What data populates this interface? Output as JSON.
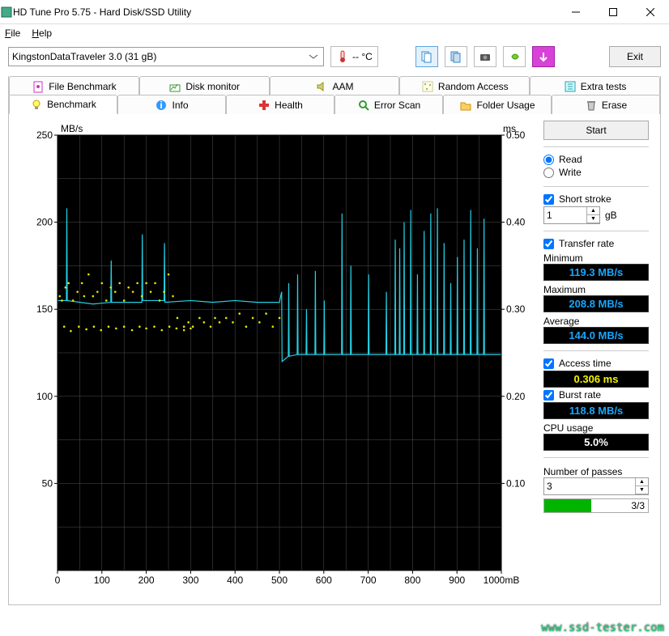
{
  "window": {
    "title": "HD Tune Pro 5.75 - Hard Disk/SSD Utility"
  },
  "menu": {
    "file": "File",
    "help": "Help"
  },
  "toolbar": {
    "drive": "KingstonDataTraveler 3.0 (31 gB)",
    "temp": "-- °C",
    "exit": "Exit"
  },
  "tabs_row1": [
    {
      "label": "File Benchmark",
      "icon": "file-bench"
    },
    {
      "label": "Disk monitor",
      "icon": "disk-mon"
    },
    {
      "label": "AAM",
      "icon": "speaker"
    },
    {
      "label": "Random Access",
      "icon": "random"
    },
    {
      "label": "Extra tests",
      "icon": "extra"
    }
  ],
  "tabs_row2": [
    {
      "label": "Benchmark",
      "icon": "bulb",
      "active": true
    },
    {
      "label": "Info",
      "icon": "info"
    },
    {
      "label": "Health",
      "icon": "plus"
    },
    {
      "label": "Error Scan",
      "icon": "lens"
    },
    {
      "label": "Folder Usage",
      "icon": "folder"
    },
    {
      "label": "Erase",
      "icon": "trash"
    }
  ],
  "side": {
    "start": "Start",
    "read": "Read",
    "write": "Write",
    "short_stroke": "Short stroke",
    "short_stroke_val": "1",
    "short_stroke_unit": "gB",
    "transfer_rate": "Transfer rate",
    "min_label": "Minimum",
    "min_val": "119.3 MB/s",
    "max_label": "Maximum",
    "max_val": "208.8 MB/s",
    "avg_label": "Average",
    "avg_val": "144.0 MB/s",
    "access_label": "Access time",
    "access_val": "0.306 ms",
    "burst_label": "Burst rate",
    "burst_val": "118.8 MB/s",
    "cpu_label": "CPU usage",
    "cpu_val": "5.0%",
    "passes_label": "Number of passes",
    "passes_val": "3",
    "progress": "3/3"
  },
  "chart": {
    "y_left_label": "MB/s",
    "y_right_label": "ms",
    "y_left_ticks": [
      50,
      100,
      150,
      200,
      250
    ],
    "y_left_min": 0,
    "y_left_max": 250,
    "y_right_ticks": [
      0.1,
      0.2,
      0.3,
      0.4,
      0.5
    ],
    "x_ticks": [
      0,
      100,
      200,
      300,
      400,
      500,
      600,
      700,
      800,
      900,
      "1000mB"
    ],
    "x_min": 0,
    "x_max": 1000,
    "bg": "#000000",
    "grid_color": "#505050",
    "line_color": "#23d1e6",
    "dot_color": "#e6e600",
    "transfer_series_base": [
      [
        0,
        155
      ],
      [
        20,
        155
      ],
      [
        21,
        208
      ],
      [
        22,
        155
      ],
      [
        80,
        153
      ],
      [
        120,
        154
      ],
      [
        121,
        178
      ],
      [
        122,
        154
      ],
      [
        190,
        154
      ],
      [
        191,
        193
      ],
      [
        192,
        155
      ],
      [
        240,
        155
      ],
      [
        241,
        188
      ],
      [
        242,
        154
      ],
      [
        300,
        155
      ],
      [
        350,
        154
      ],
      [
        400,
        155
      ],
      [
        450,
        154
      ],
      [
        500,
        154
      ],
      [
        505,
        160
      ],
      [
        506,
        120
      ],
      [
        520,
        123
      ],
      [
        521,
        165
      ],
      [
        522,
        123
      ],
      [
        540,
        124
      ],
      [
        541,
        170
      ],
      [
        542,
        124
      ],
      [
        560,
        124
      ],
      [
        561,
        150
      ],
      [
        562,
        124
      ],
      [
        580,
        124
      ],
      [
        581,
        172
      ],
      [
        582,
        124
      ],
      [
        600,
        124
      ],
      [
        601,
        155
      ],
      [
        602,
        124
      ],
      [
        620,
        124
      ],
      [
        640,
        124
      ],
      [
        641,
        205
      ],
      [
        642,
        124
      ],
      [
        660,
        124
      ],
      [
        661,
        175
      ],
      [
        662,
        124
      ],
      [
        680,
        124
      ],
      [
        700,
        124
      ],
      [
        701,
        170
      ],
      [
        702,
        124
      ],
      [
        720,
        124
      ],
      [
        740,
        124
      ],
      [
        741,
        160
      ],
      [
        742,
        124
      ],
      [
        760,
        124
      ],
      [
        761,
        190
      ],
      [
        762,
        124
      ],
      [
        770,
        124
      ],
      [
        771,
        185
      ],
      [
        772,
        124
      ],
      [
        780,
        124
      ],
      [
        781,
        200
      ],
      [
        782,
        124
      ],
      [
        795,
        124
      ],
      [
        796,
        207
      ],
      [
        797,
        124
      ],
      [
        810,
        124
      ],
      [
        811,
        170
      ],
      [
        812,
        124
      ],
      [
        825,
        124
      ],
      [
        826,
        195
      ],
      [
        827,
        124
      ],
      [
        840,
        124
      ],
      [
        841,
        205
      ],
      [
        842,
        124
      ],
      [
        855,
        124
      ],
      [
        856,
        208
      ],
      [
        857,
        124
      ],
      [
        870,
        124
      ],
      [
        871,
        188
      ],
      [
        872,
        124
      ],
      [
        885,
        124
      ],
      [
        886,
        165
      ],
      [
        887,
        124
      ],
      [
        900,
        124
      ],
      [
        901,
        180
      ],
      [
        902,
        124
      ],
      [
        915,
        124
      ],
      [
        916,
        190
      ],
      [
        917,
        124
      ],
      [
        930,
        124
      ],
      [
        931,
        207
      ],
      [
        932,
        124
      ],
      [
        945,
        124
      ],
      [
        946,
        185
      ],
      [
        947,
        124
      ],
      [
        960,
        124
      ],
      [
        961,
        202
      ],
      [
        962,
        124
      ],
      [
        980,
        124
      ],
      [
        1000,
        124
      ]
    ],
    "access_dots": [
      [
        5,
        0.315
      ],
      [
        10,
        0.31
      ],
      [
        18,
        0.325
      ],
      [
        25,
        0.33
      ],
      [
        35,
        0.31
      ],
      [
        45,
        0.32
      ],
      [
        55,
        0.33
      ],
      [
        60,
        0.315
      ],
      [
        70,
        0.34
      ],
      [
        80,
        0.315
      ],
      [
        90,
        0.32
      ],
      [
        100,
        0.33
      ],
      [
        110,
        0.31
      ],
      [
        120,
        0.325
      ],
      [
        130,
        0.32
      ],
      [
        140,
        0.33
      ],
      [
        150,
        0.31
      ],
      [
        160,
        0.325
      ],
      [
        170,
        0.32
      ],
      [
        180,
        0.33
      ],
      [
        190,
        0.315
      ],
      [
        200,
        0.33
      ],
      [
        210,
        0.32
      ],
      [
        220,
        0.33
      ],
      [
        230,
        0.31
      ],
      [
        240,
        0.32
      ],
      [
        250,
        0.34
      ],
      [
        260,
        0.315
      ],
      [
        270,
        0.29
      ],
      [
        285,
        0.28
      ],
      [
        295,
        0.285
      ],
      [
        305,
        0.28
      ],
      [
        320,
        0.29
      ],
      [
        330,
        0.285
      ],
      [
        345,
        0.28
      ],
      [
        355,
        0.29
      ],
      [
        365,
        0.285
      ],
      [
        380,
        0.29
      ],
      [
        395,
        0.285
      ],
      [
        410,
        0.295
      ],
      [
        425,
        0.28
      ],
      [
        440,
        0.29
      ],
      [
        455,
        0.285
      ],
      [
        470,
        0.295
      ],
      [
        485,
        0.28
      ],
      [
        500,
        0.29
      ],
      [
        15,
        0.28
      ],
      [
        30,
        0.275
      ],
      [
        48,
        0.28
      ],
      [
        65,
        0.277
      ],
      [
        82,
        0.28
      ],
      [
        98,
        0.276
      ],
      [
        115,
        0.28
      ],
      [
        132,
        0.278
      ],
      [
        150,
        0.28
      ],
      [
        168,
        0.276
      ],
      [
        185,
        0.28
      ],
      [
        200,
        0.278
      ],
      [
        218,
        0.28
      ],
      [
        235,
        0.276
      ],
      [
        252,
        0.28
      ],
      [
        268,
        0.278
      ],
      [
        285,
        0.276
      ],
      [
        300,
        0.278
      ]
    ]
  }
}
